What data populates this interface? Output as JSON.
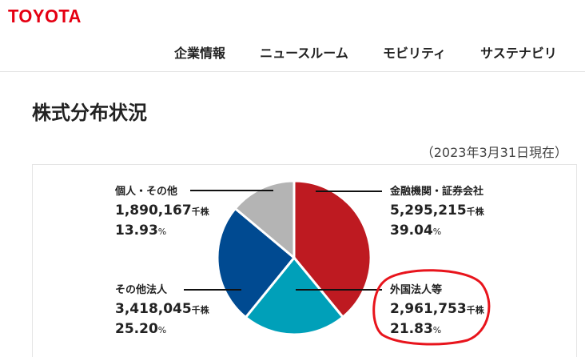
{
  "header": {
    "logo": "TOYOTA",
    "nav": [
      "企業情報",
      "ニュースルーム",
      "モビリティ",
      "サステナビリ"
    ]
  },
  "page_title": "株式分布状況",
  "as_of": "（2023年3月31日現在）",
  "colors": {
    "brand": "#e50012",
    "annotation": "#e8141c"
  },
  "chart_data": {
    "type": "pie",
    "unit": "千株",
    "slices": [
      {
        "label": "金融機関・証券会社",
        "value": 5295215,
        "display": "5,295,215",
        "percent": 39.04,
        "percent_display": "39.04",
        "color": "#be1a21"
      },
      {
        "label": "外国法人等",
        "value": 2961753,
        "display": "2,961,753",
        "percent": 21.83,
        "percent_display": "21.83",
        "color": "#00a0b9",
        "highlighted": true
      },
      {
        "label": "その他法人",
        "value": 3418045,
        "display": "3,418,045",
        "percent": 25.2,
        "percent_display": "25.20",
        "color": "#004a91"
      },
      {
        "label": "個人・その他",
        "value": 1890167,
        "display": "1,890,167",
        "percent": 13.93,
        "percent_display": "13.93",
        "color": "#b4b4b4"
      }
    ],
    "percent_sign": "%"
  }
}
